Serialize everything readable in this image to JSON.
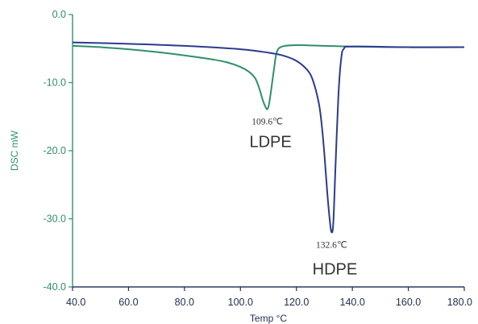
{
  "chart_data": {
    "type": "line",
    "xlabel": "Temp °C",
    "ylabel": "DSC mW",
    "xlim": [
      40,
      180
    ],
    "ylim": [
      -40,
      0
    ],
    "x_ticks": [
      "40.0",
      "60.0",
      "80.0",
      "100.0",
      "120.0",
      "140.0",
      "160.0",
      "180.0"
    ],
    "y_ticks": [
      "0.0",
      "-10.0",
      "-20.0",
      "-30.0",
      "-40.0"
    ],
    "grid": false,
    "colors": {
      "ldpe": "#2f8f6a",
      "hdpe": "#2a3b8f",
      "y_axis": "#2f8f6a",
      "x_axis": "#1f2d4d"
    },
    "series": [
      {
        "key": "ldpe",
        "x": [
          40,
          50,
          60,
          70,
          80,
          90,
          95,
          100,
          103,
          105,
          106,
          107,
          108,
          109,
          109.6,
          110.2,
          111,
          112,
          113,
          115,
          120,
          130,
          140,
          160,
          180
        ],
        "y": [
          -4.6,
          -4.8,
          -5.1,
          -5.5,
          -6.0,
          -6.6,
          -7.0,
          -7.7,
          -8.4,
          -9.2,
          -10.0,
          -11.2,
          -12.6,
          -13.6,
          -13.9,
          -13.2,
          -11.0,
          -8.0,
          -5.5,
          -4.7,
          -4.5,
          -4.6,
          -4.7,
          -4.8,
          -4.8
        ]
      },
      {
        "key": "hdpe",
        "x": [
          40,
          60,
          80,
          100,
          110,
          115,
          120,
          124,
          126,
          128,
          129,
          130,
          131,
          132,
          132.6,
          133.2,
          134,
          135,
          136,
          137,
          140,
          160,
          180
        ],
        "y": [
          -4.1,
          -4.3,
          -4.6,
          -5.1,
          -5.6,
          -6.0,
          -6.8,
          -8.2,
          -9.8,
          -13.0,
          -16.0,
          -20.5,
          -26.0,
          -30.5,
          -32.0,
          -30.5,
          -22.0,
          -12.0,
          -6.5,
          -5.0,
          -4.7,
          -4.8,
          -4.8
        ]
      }
    ],
    "annotations": [
      {
        "key": "ldpe_peak",
        "text": "109.6℃",
        "x": 109.6,
        "y": -13.9
      },
      {
        "key": "hdpe_peak",
        "text": "132.6℃",
        "x": 132.6,
        "y": -32.0
      },
      {
        "key": "ldpe_name",
        "text": "LDPE",
        "x": 109.6,
        "y": -13.9
      },
      {
        "key": "hdpe_name",
        "text": "HDPE",
        "x": 132.6,
        "y": -32.0
      }
    ]
  }
}
